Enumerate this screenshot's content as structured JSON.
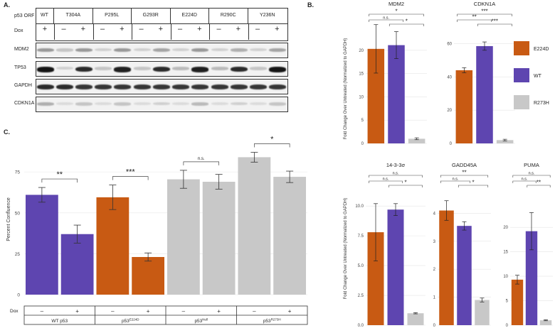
{
  "panels": {
    "a": "A.",
    "b": "B.",
    "c": "C."
  },
  "blot": {
    "orf_label": "p53 ORF",
    "dox_label": "Dox",
    "columns": [
      "WT",
      "T304A",
      "P295L",
      "G293R",
      "E224D",
      "R290C",
      "Y236N"
    ],
    "dox_signs": [
      "+",
      "–",
      "+",
      "–",
      "+",
      "–",
      "+",
      "–",
      "+",
      "–",
      "+",
      "–",
      "+"
    ],
    "rows": [
      "MDM2",
      "TP53",
      "GAPDH",
      "CDKN1A"
    ],
    "intensity": {
      "MDM2": [
        0.35,
        0.15,
        0.35,
        0.1,
        0.35,
        0.1,
        0.3,
        0.1,
        0.35,
        0.1,
        0.25,
        0.1,
        0.3
      ],
      "TP53": [
        0.95,
        0.1,
        0.85,
        0.15,
        0.9,
        0.15,
        0.85,
        0.2,
        0.9,
        0.2,
        0.85,
        0.15,
        0.95
      ],
      "GAPDH": [
        0.85,
        0.85,
        0.8,
        0.8,
        0.8,
        0.8,
        0.8,
        0.8,
        0.8,
        0.8,
        0.8,
        0.8,
        0.8
      ],
      "CDKN1A": [
        0.25,
        0.05,
        0.15,
        0.05,
        0.15,
        0.05,
        0.1,
        0.05,
        0.2,
        0.05,
        0.1,
        0.05,
        0.15
      ]
    }
  },
  "legend": {
    "items": [
      {
        "label": "E224D",
        "color": "#c85a13"
      },
      {
        "label": "WT",
        "color": "#5e45b0"
      },
      {
        "label": "R273H",
        "color": "#c8c8c8"
      }
    ]
  },
  "chart_data": [
    {
      "type": "bar",
      "title": "MDM2",
      "ylabel": "Fold Change Over Untreated (Normalized to GAPDH)",
      "categories": [
        "E224D",
        "WT",
        "R273H"
      ],
      "values": [
        20.3,
        21.1,
        1.0
      ],
      "errors": [
        5.2,
        2.9,
        0.2
      ],
      "ylim": [
        0,
        25
      ],
      "yticks": [
        "0",
        "5",
        "10",
        "15",
        "20"
      ],
      "annotations": [
        {
          "from": 0,
          "to": 1,
          "text": "n.s."
        },
        {
          "from": 0,
          "to": 2,
          "text": "*"
        },
        {
          "from": 1,
          "to": 2,
          "text": "*"
        }
      ]
    },
    {
      "type": "bar",
      "title": "CDKN1A",
      "categories": [
        "E224D",
        "WT",
        "R273H"
      ],
      "values": [
        44.0,
        58.5,
        2.0
      ],
      "errors": [
        1.5,
        2.5,
        0.5
      ],
      "ylim": [
        0,
        70
      ],
      "yticks": [
        "0",
        "20",
        "40",
        "60"
      ],
      "annotations": [
        {
          "from": 0,
          "to": 1,
          "text": "**"
        },
        {
          "from": 0,
          "to": 2,
          "text": "***"
        },
        {
          "from": 1,
          "to": 2,
          "text": "***"
        }
      ]
    },
    {
      "type": "bar",
      "title": "14-3-3σ",
      "ylabel": "Fold Change Over Untreated (Normalized to GAPDH)",
      "categories": [
        "E224D",
        "WT",
        "R273H"
      ],
      "values": [
        7.8,
        9.7,
        1.0
      ],
      "errors": [
        2.4,
        0.5,
        0.05
      ],
      "ylim": [
        0,
        11.5
      ],
      "yticks": [
        "0.0",
        "2.5",
        "5.0",
        "7.5",
        "10.0"
      ],
      "annotations": [
        {
          "from": 0,
          "to": 1,
          "text": "n.s."
        },
        {
          "from": 0,
          "to": 2,
          "text": "n.s."
        },
        {
          "from": 1,
          "to": 2,
          "text": "*"
        }
      ]
    },
    {
      "type": "bar",
      "title": "GADD45A",
      "categories": [
        "E224D",
        "WT",
        "R273H"
      ],
      "values": [
        4.1,
        3.55,
        0.9
      ],
      "errors": [
        0.35,
        0.15,
        0.07
      ],
      "ylim": [
        0,
        4.9
      ],
      "yticks": [
        "0",
        "1",
        "2",
        "3",
        "4"
      ],
      "annotations": [
        {
          "from": 0,
          "to": 1,
          "text": "n.s."
        },
        {
          "from": 0,
          "to": 2,
          "text": "**"
        },
        {
          "from": 1,
          "to": 2,
          "text": "*"
        }
      ]
    },
    {
      "type": "bar",
      "title": "PUMA",
      "categories": [
        "E224D",
        "WT",
        "R273H"
      ],
      "values": [
        9.3,
        19.2,
        1.0
      ],
      "errors": [
        0.9,
        3.8,
        0.1
      ],
      "ylim": [
        0,
        28
      ],
      "yticks": [
        "0",
        "5",
        "10",
        "15",
        "20"
      ],
      "annotations": [
        {
          "from": 0,
          "to": 1,
          "text": "n.s."
        },
        {
          "from": 0,
          "to": 2,
          "text": "n.s."
        },
        {
          "from": 1,
          "to": 2,
          "text": "**"
        }
      ]
    },
    {
      "type": "bar",
      "title": "",
      "ylabel": "Percent Confluence",
      "categories": [
        "WT p53 –",
        "WT p53 +",
        "E224D –",
        "E224D +",
        "Null –",
        "Null +",
        "R273H –",
        "R273H +"
      ],
      "values": [
        61,
        37,
        59.5,
        23,
        70.5,
        69,
        84,
        72
      ],
      "errors": [
        4.5,
        5.5,
        7.5,
        2.5,
        5.5,
        4.5,
        3.0,
        3.5
      ],
      "colors": [
        "#5e45b0",
        "#5e45b0",
        "#c85a13",
        "#c85a13",
        "#c8c8c8",
        "#c8c8c8",
        "#c8c8c8",
        "#c8c8c8"
      ],
      "ylim": [
        0,
        92
      ],
      "yticks": [
        "0",
        "25",
        "50",
        "75"
      ],
      "annotations": [
        {
          "from": 0,
          "to": 1,
          "text": "**"
        },
        {
          "from": 2,
          "to": 3,
          "text": "***"
        },
        {
          "from": 4,
          "to": 5,
          "text": "n.s."
        },
        {
          "from": 6,
          "to": 7,
          "text": "*"
        }
      ],
      "dox_label": "Dox",
      "dox_signs": [
        "–",
        "+",
        "–",
        "+",
        "–",
        "+",
        "–",
        "+"
      ],
      "groups": [
        {
          "base": "WT  p53",
          "sup": ""
        },
        {
          "base": "p53",
          "sup": "E224D"
        },
        {
          "base": "p53",
          "sup": "Null"
        },
        {
          "base": "p53",
          "sup": "R273H"
        }
      ]
    }
  ]
}
